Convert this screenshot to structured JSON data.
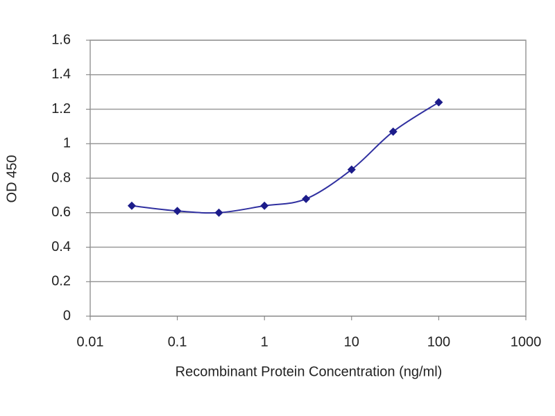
{
  "chart_data": {
    "type": "line",
    "x_label": "Recombinant Protein Concentration (ng/ml)",
    "y_label": "OD 450",
    "x": [
      0.03,
      0.1,
      0.3,
      1,
      3,
      10,
      30,
      100
    ],
    "values": [
      0.64,
      0.61,
      0.6,
      0.64,
      0.68,
      0.85,
      1.07,
      1.24
    ],
    "color": "#1c1c8a",
    "xscale": "log",
    "xlim": [
      0.01,
      1000
    ],
    "xticks": [
      0.01,
      0.1,
      1,
      10,
      100,
      1000
    ],
    "ylim": [
      0,
      1.6
    ],
    "yticks": [
      0,
      0.2,
      0.4,
      0.6,
      0.8,
      1,
      1.2,
      1.4,
      1.6
    ],
    "grid": true
  }
}
